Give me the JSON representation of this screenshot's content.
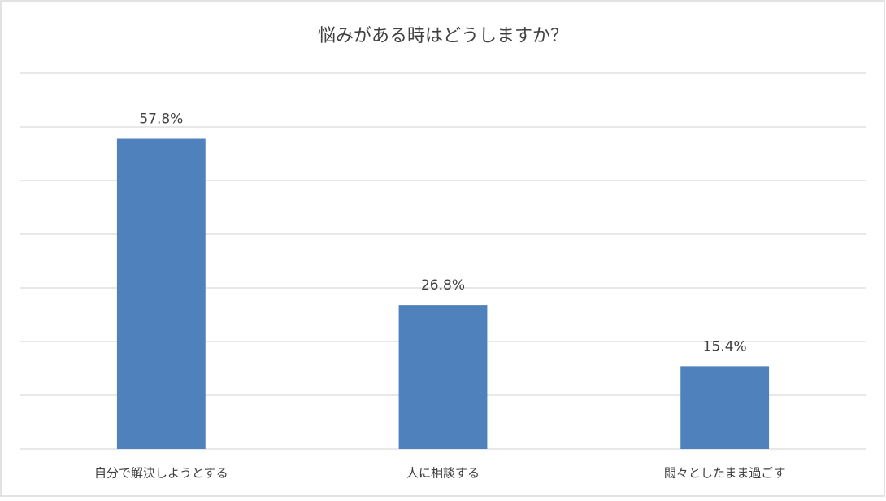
{
  "chart_data": {
    "type": "bar",
    "title": "悩みがある時はどうしますか？",
    "categories": [
      "自分で解決しようとする",
      "人に相談する",
      "悶々としたまま過ごす"
    ],
    "values": [
      57.8,
      26.8,
      15.4
    ],
    "value_labels": [
      "57.8%",
      "26.8%",
      "15.4%"
    ],
    "color": "#4f81bd",
    "ylim": [
      0,
      70
    ],
    "yticks": [
      0,
      10,
      20,
      30,
      40,
      50,
      60,
      70
    ],
    "grid": true
  }
}
